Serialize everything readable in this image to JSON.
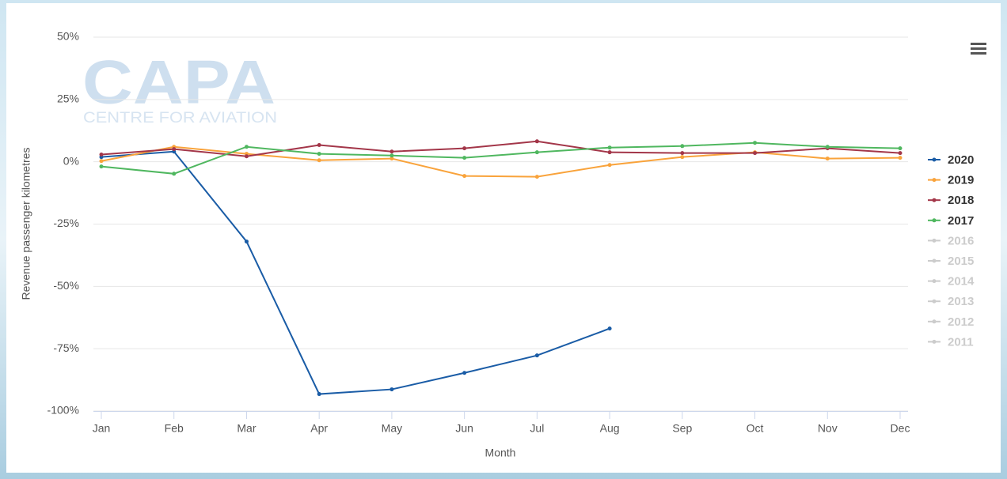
{
  "chart_data": {
    "type": "line",
    "y_label": "Revenue passenger kilometres",
    "x_label": "Month",
    "watermark": {
      "title": "CAPA",
      "subtitle": "CENTRE FOR AVIATION"
    },
    "categories": [
      "Jan",
      "Feb",
      "Mar",
      "Apr",
      "May",
      "Jun",
      "Jul",
      "Aug",
      "Sep",
      "Oct",
      "Nov",
      "Dec"
    ],
    "ylim": [
      -100,
      50
    ],
    "yticks": [
      {
        "value": 50,
        "label": "50%"
      },
      {
        "value": 25,
        "label": "25%"
      },
      {
        "value": 0,
        "label": "0%"
      },
      {
        "value": -25,
        "label": "-25%"
      },
      {
        "value": -50,
        "label": "-50%"
      },
      {
        "value": -75,
        "label": "-75%"
      },
      {
        "value": -100,
        "label": "-100%"
      }
    ],
    "grid": true,
    "legend": "right",
    "series": [
      {
        "name": "2020",
        "color": "#1a5ca6",
        "visible": true,
        "values": [
          1.9,
          4.1,
          -32,
          -93.2,
          -91.3,
          -84.7,
          -77.7,
          -66.9,
          null,
          null,
          null,
          null
        ]
      },
      {
        "name": "2019",
        "color": "#f9a33b",
        "visible": true,
        "values": [
          0.3,
          6,
          3.2,
          0.6,
          1.3,
          -5.7,
          -6,
          -1.3,
          1.9,
          3.8,
          1.3,
          1.6
        ]
      },
      {
        "name": "2018",
        "color": "#a33649",
        "visible": true,
        "values": [
          2.9,
          5.1,
          2.2,
          6.7,
          4.1,
          5.4,
          8.2,
          3.8,
          3.5,
          3.5,
          5.4,
          3.5
        ]
      },
      {
        "name": "2017",
        "color": "#4fb75f",
        "visible": true,
        "values": [
          -1.9,
          -4.8,
          6,
          3.2,
          2.5,
          1.6,
          3.8,
          5.7,
          6.3,
          7.6,
          6,
          5.4
        ]
      },
      {
        "name": "2016",
        "color": "#cccccc",
        "visible": false,
        "values": [
          null,
          null,
          null,
          null,
          null,
          null,
          null,
          null,
          null,
          null,
          null,
          null
        ]
      },
      {
        "name": "2015",
        "color": "#cccccc",
        "visible": false,
        "values": [
          null,
          null,
          null,
          null,
          null,
          null,
          null,
          null,
          null,
          null,
          null,
          null
        ]
      },
      {
        "name": "2014",
        "color": "#cccccc",
        "visible": false,
        "values": [
          null,
          null,
          null,
          null,
          null,
          null,
          null,
          null,
          null,
          null,
          null,
          null
        ]
      },
      {
        "name": "2013",
        "color": "#cccccc",
        "visible": false,
        "values": [
          null,
          null,
          null,
          null,
          null,
          null,
          null,
          null,
          null,
          null,
          null,
          null
        ]
      },
      {
        "name": "2012",
        "color": "#cccccc",
        "visible": false,
        "values": [
          null,
          null,
          null,
          null,
          null,
          null,
          null,
          null,
          null,
          null,
          null,
          null
        ]
      },
      {
        "name": "2011",
        "color": "#cccccc",
        "visible": false,
        "values": [
          null,
          null,
          null,
          null,
          null,
          null,
          null,
          null,
          null,
          null,
          null,
          null
        ]
      }
    ]
  }
}
